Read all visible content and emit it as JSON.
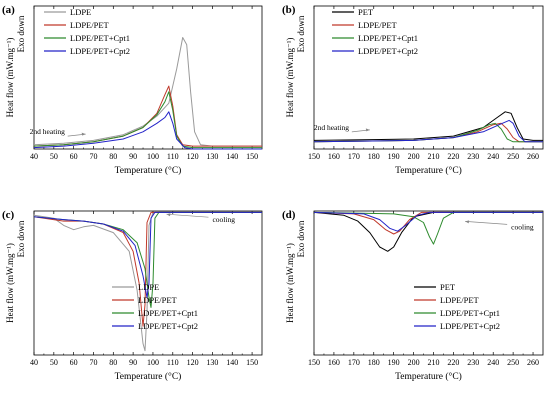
{
  "chart_data": [
    {
      "id": "a",
      "panel_label": "(a)",
      "type": "line",
      "xlabel": "Temperature (°C)",
      "ylabel": "Heat flow (mW.mg⁻¹)",
      "ylabel2": "Exo down",
      "xlim": [
        40,
        155
      ],
      "xticks": [
        40,
        50,
        60,
        70,
        80,
        90,
        100,
        110,
        120,
        130,
        140,
        150
      ],
      "ylim": [
        0,
        1
      ],
      "legend_position": "top-left",
      "annotation": {
        "text": "2nd heating",
        "arrow": "right",
        "x": 58,
        "y": 0.09
      },
      "series": [
        {
          "name": "LDPE",
          "color": "#9a9a9a",
          "points": [
            [
              40,
              0.03
            ],
            [
              55,
              0.04
            ],
            [
              70,
              0.06
            ],
            [
              85,
              0.1
            ],
            [
              95,
              0.16
            ],
            [
              102,
              0.23
            ],
            [
              108,
              0.32
            ],
            [
              112,
              0.56
            ],
            [
              115,
              0.78
            ],
            [
              117,
              0.73
            ],
            [
              119,
              0.4
            ],
            [
              121,
              0.12
            ],
            [
              124,
              0.03
            ],
            [
              130,
              0.02
            ],
            [
              155,
              0.02
            ]
          ]
        },
        {
          "name": "LDPE/PET",
          "color": "#c0392b",
          "points": [
            [
              40,
              0.02
            ],
            [
              55,
              0.03
            ],
            [
              70,
              0.05
            ],
            [
              85,
              0.09
            ],
            [
              95,
              0.15
            ],
            [
              102,
              0.25
            ],
            [
              106,
              0.38
            ],
            [
              108,
              0.44
            ],
            [
              110,
              0.3
            ],
            [
              112,
              0.1
            ],
            [
              115,
              0.03
            ],
            [
              120,
              0.02
            ],
            [
              155,
              0.02
            ]
          ]
        },
        {
          "name": "LDPE/PET+Cpt1",
          "color": "#2e8b2e",
          "points": [
            [
              40,
              0.02
            ],
            [
              55,
              0.03
            ],
            [
              70,
              0.05
            ],
            [
              85,
              0.09
            ],
            [
              95,
              0.15
            ],
            [
              102,
              0.24
            ],
            [
              106,
              0.33
            ],
            [
              108,
              0.4
            ],
            [
              110,
              0.27
            ],
            [
              112,
              0.09
            ],
            [
              115,
              0.02
            ],
            [
              120,
              0.01
            ],
            [
              155,
              0.01
            ]
          ]
        },
        {
          "name": "LDPE/PET+Cpt2",
          "color": "#2323c8",
          "points": [
            [
              40,
              0.01
            ],
            [
              55,
              0.02
            ],
            [
              70,
              0.04
            ],
            [
              85,
              0.07
            ],
            [
              95,
              0.12
            ],
            [
              102,
              0.18
            ],
            [
              106,
              0.22
            ],
            [
              108,
              0.26
            ],
            [
              110,
              0.18
            ],
            [
              112,
              0.07
            ],
            [
              116,
              0.01
            ],
            [
              120,
              0.0
            ],
            [
              155,
              0.0
            ]
          ]
        }
      ]
    },
    {
      "id": "b",
      "panel_label": "(b)",
      "type": "line",
      "xlabel": "Temperature (°C)",
      "ylabel": "Heat flow (mW.mg⁻¹)",
      "ylabel2": "Exo down",
      "xlim": [
        150,
        265
      ],
      "xticks": [
        150,
        160,
        170,
        180,
        190,
        200,
        210,
        220,
        230,
        240,
        250,
        260
      ],
      "ylim": [
        0,
        1
      ],
      "legend_position": "top-left",
      "annotation": {
        "text": "2nd heating",
        "arrow": "right",
        "x": 170,
        "y": 0.12
      },
      "series": [
        {
          "name": "PET",
          "color": "#000000",
          "points": [
            [
              150,
              0.06
            ],
            [
              200,
              0.07
            ],
            [
              220,
              0.09
            ],
            [
              235,
              0.15
            ],
            [
              242,
              0.22
            ],
            [
              246,
              0.26
            ],
            [
              249,
              0.25
            ],
            [
              252,
              0.15
            ],
            [
              255,
              0.07
            ],
            [
              260,
              0.06
            ],
            [
              265,
              0.06
            ]
          ]
        },
        {
          "name": "LDPE/PET",
          "color": "#c0392b",
          "points": [
            [
              150,
              0.05
            ],
            [
              200,
              0.06
            ],
            [
              220,
              0.08
            ],
            [
              232,
              0.12
            ],
            [
              240,
              0.17
            ],
            [
              244,
              0.18
            ],
            [
              247,
              0.14
            ],
            [
              250,
              0.08
            ],
            [
              253,
              0.05
            ],
            [
              265,
              0.05
            ]
          ]
        },
        {
          "name": "LDPE/PET+Cpt1",
          "color": "#2e8b2e",
          "points": [
            [
              150,
              0.05
            ],
            [
              200,
              0.06
            ],
            [
              220,
              0.08
            ],
            [
              232,
              0.13
            ],
            [
              238,
              0.17
            ],
            [
              241,
              0.18
            ],
            [
              244,
              0.14
            ],
            [
              247,
              0.07
            ],
            [
              250,
              0.05
            ],
            [
              265,
              0.05
            ]
          ]
        },
        {
          "name": "LDPE/PET+Cpt2",
          "color": "#2323c8",
          "points": [
            [
              150,
              0.05
            ],
            [
              200,
              0.06
            ],
            [
              220,
              0.08
            ],
            [
              235,
              0.12
            ],
            [
              243,
              0.17
            ],
            [
              248,
              0.2
            ],
            [
              250,
              0.18
            ],
            [
              253,
              0.09
            ],
            [
              256,
              0.05
            ],
            [
              265,
              0.05
            ]
          ]
        }
      ]
    },
    {
      "id": "c",
      "panel_label": "(c)",
      "type": "line",
      "xlabel": "Temperature (°C)",
      "ylabel": "Heat flow (mW.mg⁻¹)",
      "ylabel2": "Exo down",
      "xlim": [
        40,
        155
      ],
      "xticks": [
        40,
        50,
        60,
        70,
        80,
        90,
        100,
        110,
        120,
        130,
        140,
        150
      ],
      "ylim": [
        0,
        1
      ],
      "legend_position": "bottom-right",
      "annotation": {
        "text": "cooling",
        "arrow": "left",
        "x": 128,
        "y": 0.95
      },
      "series": [
        {
          "name": "LDPE",
          "color": "#9a9a9a",
          "points": [
            [
              40,
              0.97
            ],
            [
              50,
              0.95
            ],
            [
              55,
              0.9
            ],
            [
              60,
              0.87
            ],
            [
              65,
              0.89
            ],
            [
              70,
              0.9
            ],
            [
              80,
              0.85
            ],
            [
              88,
              0.72
            ],
            [
              92,
              0.45
            ],
            [
              95,
              0.08
            ],
            [
              96,
              0.03
            ],
            [
              97,
              0.3
            ],
            [
              98,
              0.9
            ],
            [
              100,
              0.99
            ],
            [
              155,
              0.99
            ]
          ]
        },
        {
          "name": "LDPE/PET",
          "color": "#c0392b",
          "points": [
            [
              40,
              0.96
            ],
            [
              55,
              0.93
            ],
            [
              65,
              0.93
            ],
            [
              75,
              0.91
            ],
            [
              85,
              0.85
            ],
            [
              90,
              0.72
            ],
            [
              93,
              0.5
            ],
            [
              95,
              0.2
            ],
            [
              96,
              0.35
            ],
            [
              97,
              0.92
            ],
            [
              99,
              0.99
            ],
            [
              155,
              0.99
            ]
          ]
        },
        {
          "name": "LDPE/PET+Cpt1",
          "color": "#2e8b2e",
          "points": [
            [
              40,
              0.96
            ],
            [
              55,
              0.94
            ],
            [
              65,
              0.93
            ],
            [
              75,
              0.91
            ],
            [
              85,
              0.87
            ],
            [
              92,
              0.78
            ],
            [
              96,
              0.6
            ],
            [
              98,
              0.4
            ],
            [
              99,
              0.33
            ],
            [
              100,
              0.5
            ],
            [
              101,
              0.95
            ],
            [
              103,
              0.99
            ],
            [
              155,
              0.99
            ]
          ]
        },
        {
          "name": "LDPE/PET+Cpt2",
          "color": "#2323c8",
          "points": [
            [
              40,
              0.96
            ],
            [
              55,
              0.94
            ],
            [
              65,
              0.93
            ],
            [
              75,
              0.91
            ],
            [
              85,
              0.86
            ],
            [
              91,
              0.76
            ],
            [
              95,
              0.55
            ],
            [
              97,
              0.4
            ],
            [
              98,
              0.5
            ],
            [
              99,
              0.95
            ],
            [
              101,
              0.99
            ],
            [
              155,
              0.99
            ]
          ]
        }
      ]
    },
    {
      "id": "d",
      "panel_label": "(d)",
      "type": "line",
      "xlabel": "Temperature (°C)",
      "ylabel": "Heat flow (mW.mg⁻¹)",
      "ylabel2": "Exo down",
      "xlim": [
        150,
        265
      ],
      "xticks": [
        150,
        160,
        170,
        180,
        190,
        200,
        210,
        220,
        230,
        240,
        250,
        260
      ],
      "ylim": [
        0,
        1
      ],
      "legend_position": "bottom-right",
      "annotation": {
        "text": "cooling",
        "arrow": "left",
        "x": 247,
        "y": 0.9
      },
      "series": [
        {
          "name": "PET",
          "color": "#000000",
          "points": [
            [
              150,
              0.99
            ],
            [
              165,
              0.97
            ],
            [
              172,
              0.93
            ],
            [
              178,
              0.85
            ],
            [
              183,
              0.75
            ],
            [
              187,
              0.72
            ],
            [
              190,
              0.75
            ],
            [
              194,
              0.85
            ],
            [
              200,
              0.96
            ],
            [
              210,
              0.99
            ],
            [
              265,
              0.99
            ]
          ]
        },
        {
          "name": "LDPE/PET",
          "color": "#c0392b",
          "points": [
            [
              150,
              0.99
            ],
            [
              170,
              0.98
            ],
            [
              180,
              0.94
            ],
            [
              186,
              0.87
            ],
            [
              190,
              0.84
            ],
            [
              193,
              0.86
            ],
            [
              198,
              0.94
            ],
            [
              204,
              0.99
            ],
            [
              265,
              0.99
            ]
          ]
        },
        {
          "name": "LDPE/PET+Cpt1",
          "color": "#2e8b2e",
          "points": [
            [
              150,
              0.99
            ],
            [
              190,
              0.98
            ],
            [
              200,
              0.96
            ],
            [
              205,
              0.92
            ],
            [
              208,
              0.82
            ],
            [
              210,
              0.77
            ],
            [
              212,
              0.84
            ],
            [
              215,
              0.95
            ],
            [
              220,
              0.99
            ],
            [
              265,
              0.99
            ]
          ]
        },
        {
          "name": "LDPE/PET+Cpt2",
          "color": "#2323c8",
          "points": [
            [
              150,
              0.99
            ],
            [
              175,
              0.98
            ],
            [
              183,
              0.94
            ],
            [
              188,
              0.88
            ],
            [
              192,
              0.86
            ],
            [
              196,
              0.9
            ],
            [
              202,
              0.97
            ],
            [
              208,
              0.99
            ],
            [
              265,
              0.99
            ]
          ]
        }
      ]
    }
  ]
}
